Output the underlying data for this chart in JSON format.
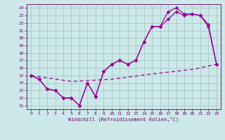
{
  "xlabel": "Windchill (Refroidissement éolien,°C)",
  "bg_color": "#cce8e8",
  "grid_color": "#aabbbb",
  "line_color": "#990099",
  "xlim": [
    -0.5,
    23.5
  ],
  "ylim": [
    10.5,
    24.5
  ],
  "xticks": [
    0,
    1,
    2,
    3,
    4,
    5,
    6,
    7,
    8,
    9,
    10,
    11,
    12,
    13,
    14,
    15,
    16,
    17,
    18,
    19,
    20,
    21,
    22,
    23
  ],
  "yticks": [
    11,
    12,
    13,
    14,
    15,
    16,
    17,
    18,
    19,
    20,
    21,
    22,
    23,
    24
  ],
  "line1_x": [
    0,
    1,
    2,
    3,
    4,
    5,
    6,
    7,
    8,
    9,
    10,
    11,
    12,
    13,
    14,
    15,
    16,
    17,
    18,
    19,
    20,
    21,
    22,
    23
  ],
  "line1_y": [
    15.0,
    14.5,
    13.2,
    13.0,
    12.0,
    12.0,
    11.0,
    14.0,
    12.2,
    15.5,
    16.5,
    17.0,
    16.5,
    17.0,
    19.5,
    21.5,
    21.5,
    23.5,
    24.0,
    23.2,
    23.2,
    23.0,
    21.8,
    16.5
  ],
  "line2_x": [
    0,
    1,
    2,
    3,
    4,
    5,
    6,
    7,
    8,
    9,
    10,
    11,
    12,
    13,
    14,
    15,
    16,
    17,
    18,
    19,
    20,
    21,
    22,
    23
  ],
  "line2_y": [
    15.0,
    14.5,
    13.2,
    13.0,
    12.0,
    12.0,
    11.0,
    14.0,
    12.2,
    15.5,
    16.5,
    17.0,
    16.5,
    17.0,
    19.5,
    21.5,
    21.5,
    22.5,
    23.5,
    23.0,
    23.2,
    23.0,
    21.5,
    16.5
  ],
  "line3_x": [
    0,
    5,
    10,
    15,
    20,
    23
  ],
  "line3_y": [
    15.0,
    14.2,
    14.5,
    15.2,
    15.8,
    16.5
  ],
  "markersize": 2.5,
  "linewidth": 0.9
}
